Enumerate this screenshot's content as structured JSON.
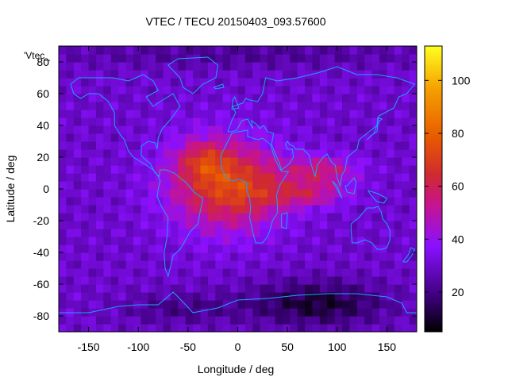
{
  "chart_data": {
    "type": "heatmap",
    "title": "VTEC / TECU 20150403_093.57600",
    "xlabel": "Longitude / deg",
    "ylabel": "Latitude / deg",
    "series_key": "'Vtec_",
    "xlim": [
      -180,
      180
    ],
    "ylim": [
      -90,
      90
    ],
    "x_ticks": [
      -150,
      -100,
      -50,
      0,
      50,
      100,
      150
    ],
    "y_ticks": [
      -80,
      -60,
      -40,
      -20,
      0,
      20,
      40,
      60,
      80
    ],
    "colorbar": {
      "label": "",
      "range": [
        5,
        113
      ],
      "ticks": [
        20,
        40,
        60,
        80,
        100
      ],
      "palette": [
        "#000000",
        "#3b0078",
        "#8a10ff",
        "#c8148a",
        "#e83a10",
        "#f07800",
        "#fab800",
        "#ffff20"
      ]
    },
    "features": [
      {
        "name": "equatorial-anomaly-americas",
        "lon_center": -20,
        "lat_center": 10,
        "peak_value": 85
      },
      {
        "name": "equatorial-band-indian-ocean",
        "lon_center": 90,
        "lat_center": 5,
        "peak_value": 65
      },
      {
        "name": "southern-hemisphere-low",
        "lon_center": 80,
        "lat_center": -70,
        "peak_value": 8
      },
      {
        "name": "background-level",
        "value": 30
      }
    ],
    "overlay": "coastlines"
  }
}
